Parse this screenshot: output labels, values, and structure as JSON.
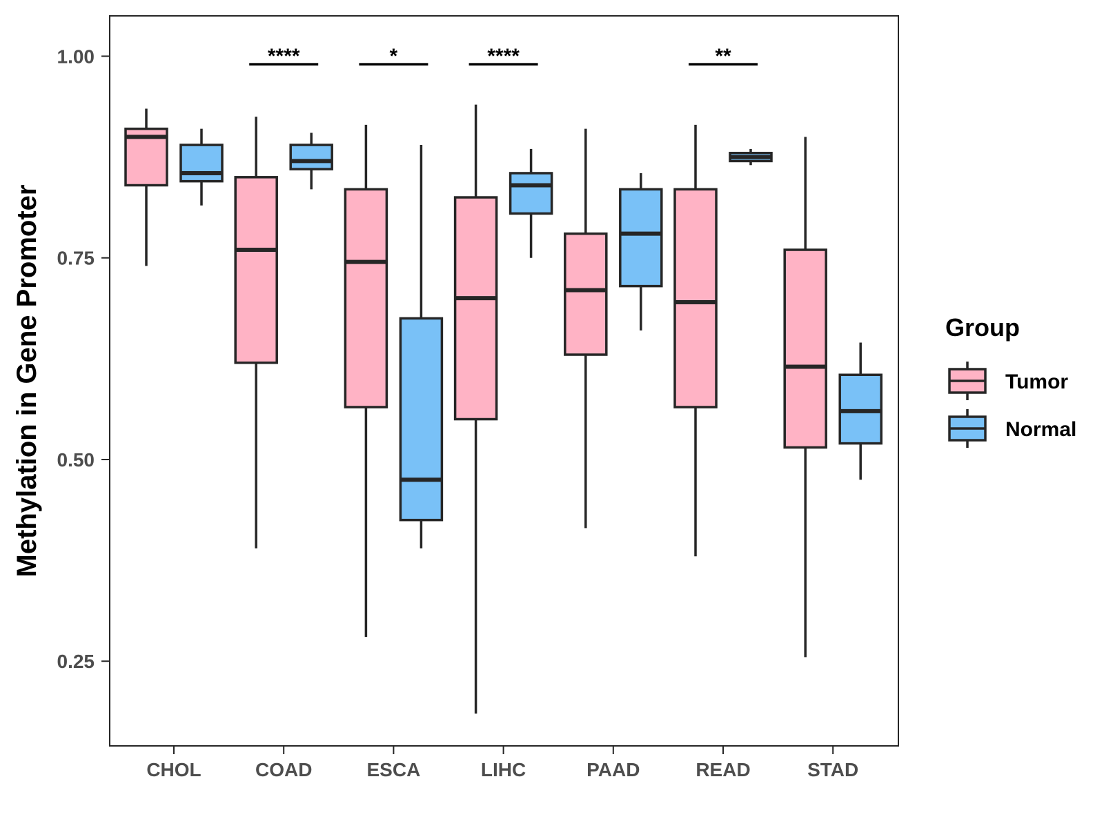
{
  "chart_data": {
    "type": "boxplot",
    "title": "",
    "xlabel": "",
    "ylabel": "Methylation in Gene Promoter",
    "ylim": [
      0.145,
      1.05
    ],
    "yticks": [
      0.25,
      0.5,
      0.75,
      1.0
    ],
    "ytick_labels": [
      "0.25",
      "0.50",
      "0.75",
      "1.00"
    ],
    "categories": [
      "CHOL",
      "COAD",
      "ESCA",
      "LIHC",
      "PAAD",
      "READ",
      "STAD"
    ],
    "grid": false,
    "legend": {
      "title": "Group",
      "position": "right"
    },
    "series": [
      {
        "name": "Tumor",
        "color": "#ffb3c5",
        "boxes": [
          {
            "min": 0.74,
            "q1": 0.84,
            "median": 0.9,
            "q3": 0.91,
            "max": 0.935
          },
          {
            "min": 0.39,
            "q1": 0.62,
            "median": 0.76,
            "q3": 0.85,
            "max": 0.925
          },
          {
            "min": 0.28,
            "q1": 0.565,
            "median": 0.745,
            "q3": 0.835,
            "max": 0.915
          },
          {
            "min": 0.185,
            "q1": 0.55,
            "median": 0.7,
            "q3": 0.825,
            "max": 0.94
          },
          {
            "min": 0.415,
            "q1": 0.63,
            "median": 0.71,
            "q3": 0.78,
            "max": 0.91
          },
          {
            "min": 0.38,
            "q1": 0.565,
            "median": 0.695,
            "q3": 0.835,
            "max": 0.915
          },
          {
            "min": 0.255,
            "q1": 0.515,
            "median": 0.615,
            "q3": 0.76,
            "max": 0.9
          }
        ]
      },
      {
        "name": "Normal",
        "color": "#79c1f7",
        "boxes": [
          {
            "min": 0.815,
            "q1": 0.845,
            "median": 0.855,
            "q3": 0.89,
            "max": 0.91
          },
          {
            "min": 0.835,
            "q1": 0.86,
            "median": 0.87,
            "q3": 0.89,
            "max": 0.905
          },
          {
            "min": 0.39,
            "q1": 0.425,
            "median": 0.475,
            "q3": 0.675,
            "max": 0.89
          },
          {
            "min": 0.75,
            "q1": 0.805,
            "median": 0.84,
            "q3": 0.855,
            "max": 0.885
          },
          {
            "min": 0.66,
            "q1": 0.715,
            "median": 0.78,
            "q3": 0.835,
            "max": 0.855
          },
          {
            "min": 0.865,
            "q1": 0.87,
            "median": 0.875,
            "q3": 0.88,
            "max": 0.885
          },
          {
            "min": 0.475,
            "q1": 0.52,
            "median": 0.56,
            "q3": 0.605,
            "max": 0.645
          }
        ]
      }
    ],
    "annotations": [
      {
        "category": "COAD",
        "label": "****"
      },
      {
        "category": "ESCA",
        "label": "*"
      },
      {
        "category": "LIHC",
        "label": "****"
      },
      {
        "category": "READ",
        "label": "**"
      }
    ],
    "annotation_y": 0.99
  },
  "colors": {
    "outline": "#262626",
    "tick_text": "#4d4d4d",
    "text": "#000000"
  }
}
